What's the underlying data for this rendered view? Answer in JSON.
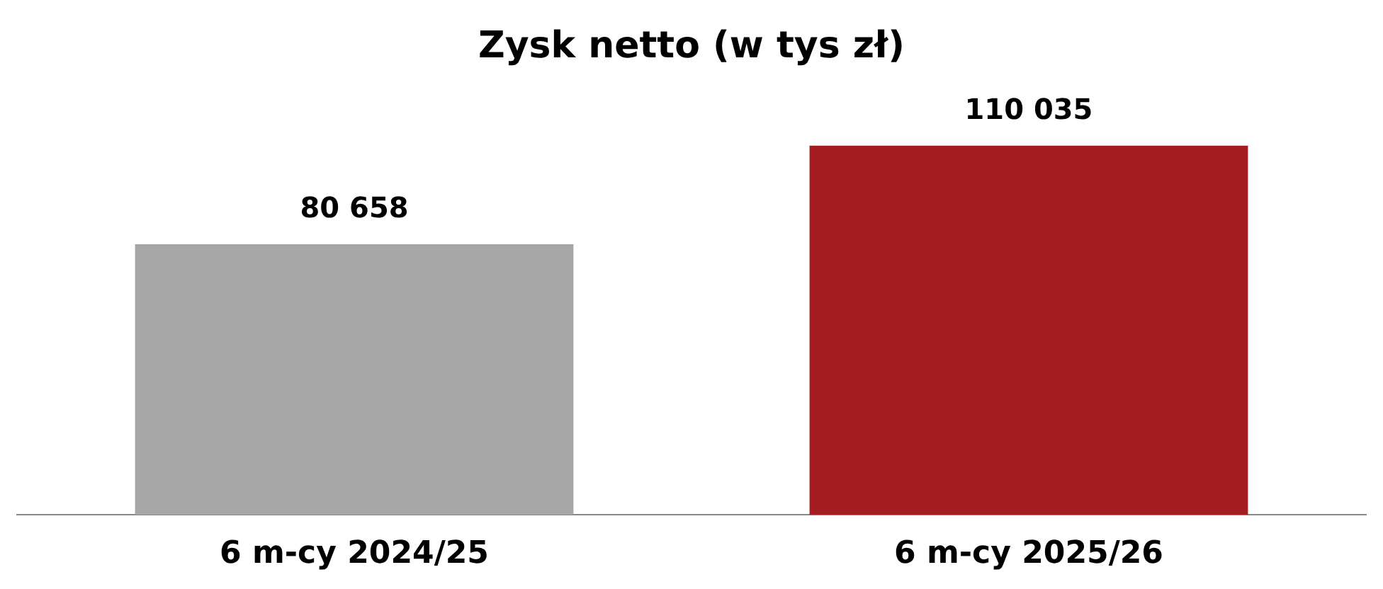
{
  "chart_data": {
    "type": "bar",
    "title": "Zysk netto (w tys zł)",
    "categories": [
      "6 m-cy 2024/25",
      "6 m-cy 2025/26"
    ],
    "values": [
      80658,
      110035
    ],
    "colors": [
      "#a6a6a6",
      "#a31c22"
    ],
    "value_labels": [
      "80 658",
      "110 035"
    ],
    "grid": false,
    "legend": false
  }
}
